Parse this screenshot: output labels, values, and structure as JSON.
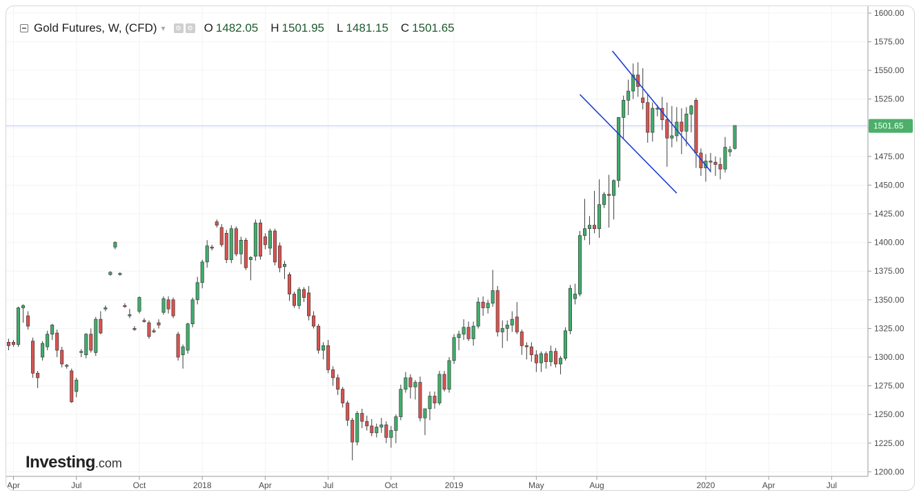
{
  "header": {
    "instrument": "Gold Futures, W, (CFD)",
    "ohlc": [
      {
        "key": "O",
        "value": "1482.05"
      },
      {
        "key": "H",
        "value": "1501.95"
      },
      {
        "key": "L",
        "value": "1481.15"
      },
      {
        "key": "C",
        "value": "1501.65"
      }
    ],
    "icons": [
      "collapse-icon",
      "dropdown-icon",
      "settings-icon",
      "gear-icon"
    ]
  },
  "branding": {
    "name": "Investing",
    "suffix": ".com"
  },
  "colors": {
    "up": "#3fae6b",
    "down": "#d9534f",
    "candle_border": "#3a3a3a",
    "trendline": "#1a3fd6",
    "price_line": "#b7c3f2",
    "price_label_bg": "#4caf6a"
  },
  "chart_data": {
    "type": "candlestick",
    "y_ticks": [
      "1600.00",
      "1575.00",
      "1550.00",
      "1525.00",
      "1500.00",
      "1475.00",
      "1450.00",
      "1425.00",
      "1400.00",
      "1375.00",
      "1350.00",
      "1325.00",
      "1300.00",
      "1275.00",
      "1250.00",
      "1225.00",
      "1200.00"
    ],
    "ylim": [
      1196,
      1606
    ],
    "x_ticks": [
      {
        "label": "Apr",
        "week": 1.5
      },
      {
        "label": "Jul",
        "week": 14.5
      },
      {
        "label": "Oct",
        "week": 27.5
      },
      {
        "label": "2018",
        "week": 40.5
      },
      {
        "label": "Apr",
        "week": 53.5
      },
      {
        "label": "Jul",
        "week": 66.5
      },
      {
        "label": "Oct",
        "week": 79.5
      },
      {
        "label": "2019",
        "week": 92.5
      },
      {
        "label": "May",
        "week": 109.5
      },
      {
        "label": "Aug",
        "week": 122
      },
      {
        "label": "2020",
        "week": 144.5
      },
      {
        "label": "Apr",
        "week": 157.5
      },
      {
        "label": "Jul",
        "week": 170.5
      }
    ],
    "xlim_weeks": [
      0,
      178
    ],
    "last_price": {
      "value": 1501.65,
      "label": "1501.65"
    },
    "trendlines": [
      {
        "from": {
          "week": 125.2,
          "price": 1567
        },
        "to": {
          "week": 145.5,
          "price": 1462
        }
      },
      {
        "from": {
          "week": 118.5,
          "price": 1529
        },
        "to": {
          "week": 138.5,
          "price": 1443
        }
      }
    ],
    "ohlc": [
      [
        1313,
        1316,
        1306,
        1310
      ],
      [
        1313,
        1315,
        1309,
        1311
      ],
      [
        1311,
        1344,
        1309,
        1343
      ],
      [
        1343,
        1346,
        1330,
        1345
      ],
      [
        1336,
        1340,
        1324,
        1327
      ],
      [
        1314,
        1317,
        1282,
        1286
      ],
      [
        1286,
        1288,
        1273,
        1282
      ],
      [
        1300,
        1314,
        1297,
        1312
      ],
      [
        1309,
        1323,
        1306,
        1320
      ],
      [
        1320,
        1329,
        1315,
        1328
      ],
      [
        1321,
        1324,
        1300,
        1306
      ],
      [
        1306,
        1309,
        1291,
        1294
      ],
      [
        1292,
        1294,
        1290,
        1293
      ],
      [
        1288,
        1290,
        1260,
        1261
      ],
      [
        1270,
        1282,
        1265,
        1280
      ],
      [
        1304,
        1307,
        1300,
        1305
      ],
      [
        1302,
        1321,
        1299,
        1320
      ],
      [
        1320,
        1325,
        1304,
        1306
      ],
      [
        1304,
        1335,
        1301,
        1333
      ],
      [
        1333,
        1340,
        1320,
        1321
      ],
      [
        1342,
        1345,
        1340,
        1343
      ],
      [
        1372,
        1375,
        1371,
        1374
      ],
      [
        1396,
        1401,
        1394,
        1400
      ],
      [
        1372,
        1374,
        1371,
        1373
      ],
      [
        1345,
        1347,
        1343,
        1344
      ],
      [
        1336,
        1342,
        1334,
        1337
      ],
      [
        1325,
        1327,
        1323,
        1324
      ],
      [
        1340,
        1353,
        1338,
        1352
      ],
      [
        1332,
        1334,
        1330,
        1331
      ],
      [
        1330,
        1332,
        1316,
        1318
      ],
      [
        1323,
        1325,
        1321,
        1322
      ],
      [
        1330,
        1333,
        1325,
        1328
      ],
      [
        1339,
        1353,
        1337,
        1351
      ],
      [
        1350,
        1353,
        1338,
        1342
      ],
      [
        1350,
        1352,
        1334,
        1336
      ],
      [
        1320,
        1322,
        1297,
        1300
      ],
      [
        1302,
        1311,
        1290,
        1309
      ],
      [
        1306,
        1330,
        1303,
        1329
      ],
      [
        1329,
        1352,
        1326,
        1350
      ],
      [
        1350,
        1370,
        1346,
        1365
      ],
      [
        1365,
        1385,
        1360,
        1383
      ],
      [
        1383,
        1402,
        1378,
        1397
      ],
      [
        1396,
        1398,
        1393,
        1395
      ],
      [
        1418,
        1420,
        1413,
        1415
      ],
      [
        1413,
        1416,
        1396,
        1398
      ],
      [
        1408,
        1411,
        1382,
        1385
      ],
      [
        1385,
        1415,
        1382,
        1412
      ],
      [
        1412,
        1414,
        1388,
        1390
      ],
      [
        1390,
        1405,
        1381,
        1402
      ],
      [
        1402,
        1404,
        1376,
        1378
      ],
      [
        1385,
        1388,
        1367,
        1387
      ],
      [
        1388,
        1420,
        1384,
        1417
      ],
      [
        1417,
        1420,
        1385,
        1388
      ],
      [
        1405,
        1408,
        1394,
        1398
      ],
      [
        1395,
        1412,
        1389,
        1410
      ],
      [
        1410,
        1412,
        1380,
        1383
      ],
      [
        1397,
        1400,
        1374,
        1378
      ],
      [
        1379,
        1384,
        1368,
        1381
      ],
      [
        1372,
        1374,
        1349,
        1355
      ],
      [
        1355,
        1357,
        1343,
        1345
      ],
      [
        1345,
        1361,
        1342,
        1359
      ],
      [
        1359,
        1361,
        1348,
        1352
      ],
      [
        1356,
        1362,
        1332,
        1336
      ],
      [
        1336,
        1340,
        1325,
        1327
      ],
      [
        1327,
        1329,
        1303,
        1306
      ],
      [
        1306,
        1313,
        1298,
        1310
      ],
      [
        1310,
        1315,
        1286,
        1289
      ],
      [
        1289,
        1292,
        1275,
        1282
      ],
      [
        1282,
        1285,
        1267,
        1272
      ],
      [
        1272,
        1274,
        1256,
        1260
      ],
      [
        1260,
        1262,
        1240,
        1245
      ],
      [
        1245,
        1247,
        1210,
        1226
      ],
      [
        1226,
        1253,
        1223,
        1251
      ],
      [
        1251,
        1255,
        1238,
        1244
      ],
      [
        1244,
        1249,
        1236,
        1240
      ],
      [
        1240,
        1246,
        1231,
        1234
      ],
      [
        1234,
        1242,
        1230,
        1239
      ],
      [
        1239,
        1247,
        1234,
        1241
      ],
      [
        1241,
        1244,
        1225,
        1230
      ],
      [
        1230,
        1240,
        1221,
        1236
      ],
      [
        1236,
        1250,
        1225,
        1248
      ],
      [
        1248,
        1276,
        1245,
        1272
      ],
      [
        1272,
        1287,
        1269,
        1282
      ],
      [
        1282,
        1285,
        1264,
        1274
      ],
      [
        1274,
        1280,
        1263,
        1278
      ],
      [
        1278,
        1283,
        1244,
        1247
      ],
      [
        1247,
        1253,
        1232,
        1255
      ],
      [
        1255,
        1270,
        1245,
        1266
      ],
      [
        1266,
        1270,
        1255,
        1260
      ],
      [
        1260,
        1288,
        1258,
        1285
      ],
      [
        1285,
        1288,
        1270,
        1272
      ],
      [
        1272,
        1300,
        1269,
        1297
      ],
      [
        1297,
        1320,
        1294,
        1317
      ],
      [
        1317,
        1323,
        1306,
        1320
      ],
      [
        1320,
        1333,
        1315,
        1326
      ],
      [
        1326,
        1331,
        1314,
        1316
      ],
      [
        1316,
        1331,
        1310,
        1327
      ],
      [
        1327,
        1352,
        1325,
        1348
      ],
      [
        1348,
        1353,
        1336,
        1343
      ],
      [
        1343,
        1350,
        1338,
        1347
      ],
      [
        1347,
        1376,
        1344,
        1358
      ],
      [
        1358,
        1362,
        1318,
        1322
      ],
      [
        1322,
        1332,
        1308,
        1325
      ],
      [
        1325,
        1332,
        1314,
        1328
      ],
      [
        1328,
        1340,
        1322,
        1333
      ],
      [
        1335,
        1348,
        1320,
        1322
      ],
      [
        1322,
        1324,
        1302,
        1310
      ],
      [
        1310,
        1313,
        1298,
        1309
      ],
      [
        1309,
        1313,
        1296,
        1302
      ],
      [
        1302,
        1306,
        1287,
        1295
      ],
      [
        1295,
        1305,
        1287,
        1303
      ],
      [
        1303,
        1305,
        1290,
        1296
      ],
      [
        1296,
        1310,
        1292,
        1305
      ],
      [
        1305,
        1308,
        1291,
        1294
      ],
      [
        1294,
        1301,
        1285,
        1299
      ],
      [
        1299,
        1326,
        1297,
        1323
      ],
      [
        1323,
        1363,
        1320,
        1360
      ],
      [
        1351,
        1364,
        1346,
        1355
      ],
      [
        1355,
        1410,
        1353,
        1406
      ],
      [
        1406,
        1438,
        1402,
        1412
      ],
      [
        1412,
        1423,
        1398,
        1415
      ],
      [
        1415,
        1445,
        1408,
        1412
      ],
      [
        1412,
        1455,
        1404,
        1433
      ],
      [
        1433,
        1444,
        1430,
        1442
      ],
      [
        1442,
        1459,
        1413,
        1441
      ],
      [
        1441,
        1455,
        1420,
        1454
      ],
      [
        1454,
        1509,
        1448,
        1509
      ],
      [
        1509,
        1528,
        1490,
        1524
      ],
      [
        1524,
        1542,
        1511,
        1532
      ],
      [
        1532,
        1556,
        1525,
        1546
      ],
      [
        1546,
        1557,
        1527,
        1536
      ],
      [
        1526,
        1552,
        1516,
        1522
      ],
      [
        1522,
        1530,
        1487,
        1496
      ],
      [
        1496,
        1522,
        1488,
        1517
      ],
      [
        1517,
        1520,
        1510,
        1517
      ],
      [
        1517,
        1527,
        1498,
        1507
      ],
      [
        1507,
        1522,
        1466,
        1491
      ],
      [
        1491,
        1519,
        1483,
        1493
      ],
      [
        1493,
        1518,
        1488,
        1505
      ],
      [
        1505,
        1517,
        1477,
        1497
      ],
      [
        1497,
        1518,
        1484,
        1512
      ],
      [
        1512,
        1520,
        1496,
        1519
      ],
      [
        1524,
        1526,
        1465,
        1478
      ],
      [
        1478,
        1482,
        1458,
        1465
      ],
      [
        1465,
        1477,
        1453,
        1471
      ],
      [
        1471,
        1478,
        1461,
        1470
      ],
      [
        1470,
        1475,
        1458,
        1468
      ],
      [
        1468,
        1474,
        1455,
        1464
      ],
      [
        1464,
        1492,
        1461,
        1483
      ],
      [
        1479,
        1484,
        1475,
        1481
      ],
      [
        1482,
        1502,
        1481,
        1502
      ]
    ]
  }
}
